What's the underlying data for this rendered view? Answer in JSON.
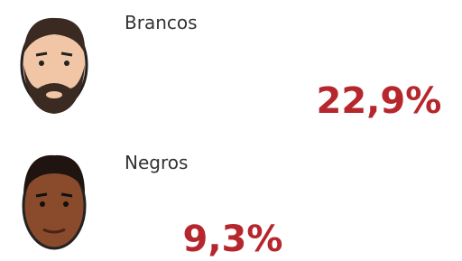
{
  "chart_data": {
    "type": "pictogram",
    "categories": [
      "Brancos",
      "Negros"
    ],
    "values": [
      22.9,
      9.3
    ],
    "value_labels": [
      "22,9%",
      "9,3%"
    ],
    "color": "#b5272d"
  }
}
